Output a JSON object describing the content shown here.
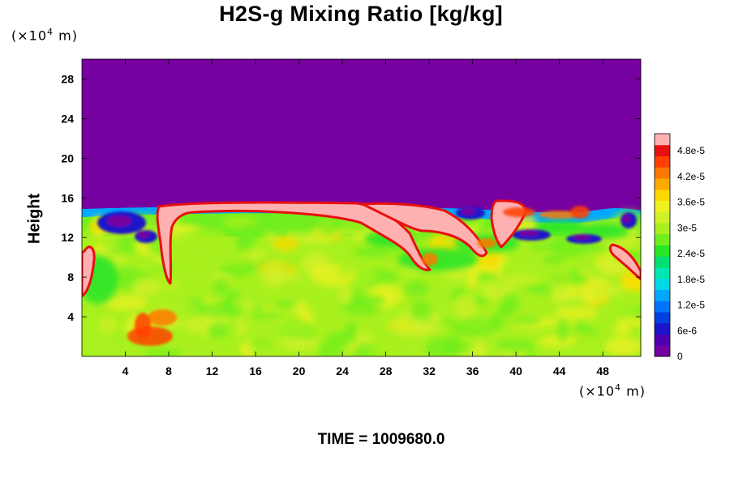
{
  "chart_data": {
    "type": "heatmap",
    "title": "H2S-g Mixing Ratio [kg/kg]",
    "ylabel": "Height",
    "x_unit": {
      "prefix": "(×10",
      "exp": "4",
      "suffix": " m)"
    },
    "y_unit": {
      "prefix": "(×10",
      "exp": "4",
      "suffix": " m)"
    },
    "xlim": [
      0,
      51.5
    ],
    "ylim": [
      0,
      30
    ],
    "x_ticks": [
      "4",
      "8",
      "12",
      "16",
      "20",
      "24",
      "28",
      "32",
      "36",
      "40",
      "44",
      "48"
    ],
    "y_ticks": [
      "4",
      "8",
      "12",
      "16",
      "20",
      "24",
      "28"
    ],
    "colorbar": {
      "range": [
        0,
        5.2e-05
      ],
      "tick_labels": [
        "0",
        "6e-6",
        "1.2e-5",
        "1.8e-5",
        "2.4e-5",
        "3e-5",
        "3.6e-5",
        "4.2e-5",
        "4.8e-5"
      ],
      "tick_values": [
        0,
        6e-06,
        1.2e-05,
        1.8e-05,
        2.4e-05,
        3e-05,
        3.6e-05,
        4.2e-05,
        4.8e-05
      ],
      "colors": [
        "#7700a0",
        "#5000b0",
        "#1c14c8",
        "#0040e0",
        "#0074ff",
        "#00a8ff",
        "#00d8e8",
        "#00e8b0",
        "#00e070",
        "#28e628",
        "#70ee1e",
        "#a8f01e",
        "#d0f028",
        "#eef020",
        "#ffd800",
        "#ffaa00",
        "#ff7800",
        "#ff4000",
        "#e81010",
        "#ffb0b0"
      ]
    },
    "field_summary": {
      "upper_layer_value": 0,
      "top_of_mixed_layer_height": 15.2,
      "interior_range": [
        2.6e-05,
        3.6e-05
      ],
      "saturated_value": 5e-05
    }
  },
  "footer": {
    "time_label": "TIME = 1009680.0"
  }
}
